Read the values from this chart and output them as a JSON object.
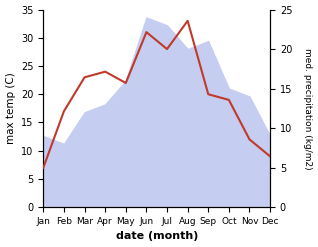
{
  "months": [
    "Jan",
    "Feb",
    "Mar",
    "Apr",
    "May",
    "Jun",
    "Jul",
    "Aug",
    "Sep",
    "Oct",
    "Nov",
    "Dec"
  ],
  "temp": [
    7,
    17,
    23,
    24,
    22,
    31,
    28,
    33,
    20,
    19,
    12,
    9
  ],
  "precip": [
    9,
    8,
    12,
    13,
    16,
    24,
    23,
    20,
    21,
    15,
    14,
    9
  ],
  "temp_color": "#c0392b",
  "precip_fill_color": "#c5cef0",
  "ylabel_left": "max temp (C)",
  "ylabel_right": "med. precipitation (kg/m2)",
  "xlabel": "date (month)",
  "ylim_left": [
    0,
    35
  ],
  "ylim_right": [
    0,
    25
  ],
  "yticks_left": [
    0,
    5,
    10,
    15,
    20,
    25,
    30,
    35
  ],
  "yticks_right": [
    0,
    5,
    10,
    15,
    20,
    25
  ],
  "background_color": "#ffffff"
}
